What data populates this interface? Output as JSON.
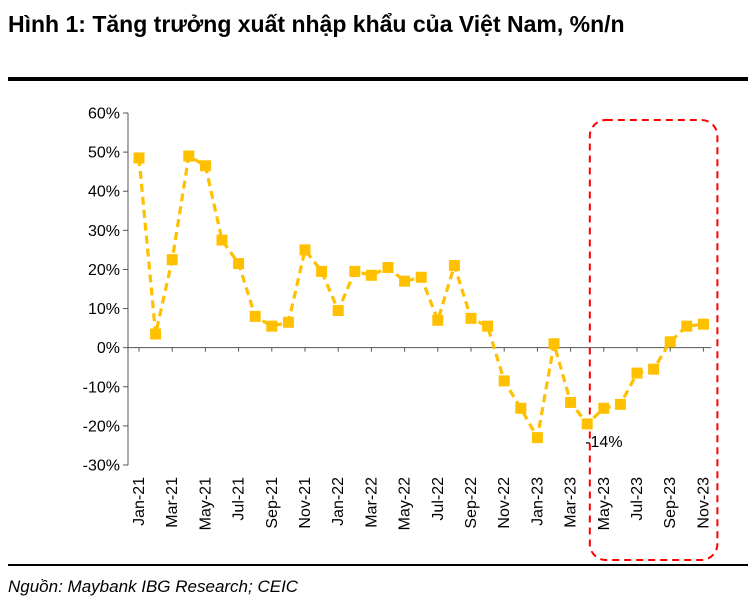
{
  "title": "Hình 1: Tăng trưởng xuất nhập khẩu của Việt Nam, %n/n",
  "source": "Nguồn: Maybank IBG Research; CEIC",
  "chart_data": {
    "type": "line",
    "x": [
      "Jan-21",
      "Feb-21",
      "Mar-21",
      "Apr-21",
      "May-21",
      "Jun-21",
      "Jul-21",
      "Aug-21",
      "Sep-21",
      "Oct-21",
      "Nov-21",
      "Dec-21",
      "Jan-22",
      "Feb-22",
      "Mar-22",
      "Apr-22",
      "May-22",
      "Jun-22",
      "Jul-22",
      "Aug-22",
      "Sep-22",
      "Oct-22",
      "Nov-22",
      "Dec-22",
      "Jan-23",
      "Feb-23",
      "Mar-23",
      "Apr-23",
      "May-23",
      "Jun-23",
      "Jul-23",
      "Aug-23",
      "Sep-23",
      "Oct-23",
      "Nov-23"
    ],
    "x_tick_labels": [
      "Jan-21",
      "Mar-21",
      "May-21",
      "Jul-21",
      "Sep-21",
      "Nov-21",
      "Jan-22",
      "Mar-22",
      "May-22",
      "Jul-22",
      "Sep-22",
      "Nov-22",
      "Jan-23",
      "Mar-23",
      "May-23",
      "Jul-23",
      "Sep-23",
      "Nov-23"
    ],
    "series": [
      {
        "values": [
          48.5,
          3.5,
          22.5,
          49,
          46.5,
          27.5,
          21.5,
          8,
          5.5,
          6.5,
          25,
          19.5,
          9.5,
          19.5,
          18.5,
          20.5,
          17,
          18,
          7,
          21,
          7.5,
          5.5,
          -8.5,
          -15.5,
          -23,
          1,
          -14,
          -19.5,
          -15.5,
          -14.5,
          -6.5,
          -5.5,
          1.5,
          5.5,
          6
        ]
      }
    ],
    "ylim": [
      -30,
      60
    ],
    "y_ticks": [
      -30,
      -20,
      -10,
      0,
      10,
      20,
      30,
      40,
      50,
      60
    ],
    "y_tick_format": "%",
    "annotation": {
      "text": "-14%",
      "x": "Apr-23"
    },
    "highlight": {
      "from": "May-23",
      "to": "Nov-23",
      "style": "red dashed rounded box"
    },
    "colors": {
      "line": "#FFC000",
      "highlight": "#FF0000",
      "axis": "#000000"
    },
    "grid": false,
    "legend": "none"
  }
}
